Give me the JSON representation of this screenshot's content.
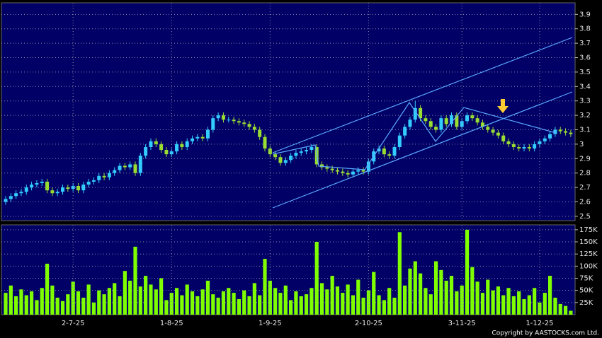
{
  "chart_data": [
    {
      "type": "candlestick",
      "up_color": "#33ccff",
      "down_color": "#99dd33",
      "grid": true,
      "ylim": [
        2.47,
        3.98
      ],
      "yticks": [
        2.5,
        2.6,
        2.7,
        2.8,
        2.9,
        3,
        3.1,
        3.2,
        3.3,
        3.4,
        3.5,
        3.6,
        3.7,
        3.8,
        3.9
      ],
      "open": [
        2.6,
        2.62,
        2.64,
        2.66,
        2.67,
        2.7,
        2.72,
        2.73,
        2.74,
        2.68,
        2.66,
        2.67,
        2.7,
        2.69,
        2.71,
        2.68,
        2.72,
        2.74,
        2.75,
        2.78,
        2.77,
        2.8,
        2.82,
        2.85,
        2.84,
        2.86,
        2.8,
        2.92,
        2.98,
        3.02,
        3.0,
        2.96,
        2.93,
        2.95,
        3.0,
        2.98,
        3.02,
        3.04,
        3.05,
        3.04,
        3.1,
        3.18,
        3.2,
        3.17,
        3.17,
        3.16,
        3.15,
        3.14,
        3.12,
        3.1,
        3.05,
        2.97,
        2.93,
        2.91,
        2.87,
        2.89,
        2.92,
        2.94,
        2.95,
        2.96,
        2.98,
        2.86,
        2.84,
        2.83,
        2.82,
        2.81,
        2.8,
        2.79,
        2.81,
        2.82,
        2.81,
        2.88,
        2.95,
        2.97,
        2.93,
        2.92,
        2.98,
        3.06,
        3.12,
        3.17,
        3.25,
        3.18,
        3.16,
        3.12,
        3.1,
        3.18,
        3.14,
        3.2,
        3.12,
        3.16,
        3.2,
        3.18,
        3.15,
        3.12,
        3.1,
        3.08,
        3.06,
        3.02,
        3.0,
        2.98,
        2.97,
        2.98,
        2.97,
        3.0,
        3.02,
        3.04,
        3.07,
        3.1,
        3.09,
        3.08
      ],
      "high": [
        2.64,
        2.66,
        2.68,
        2.69,
        2.72,
        2.74,
        2.75,
        2.76,
        2.76,
        2.7,
        2.69,
        2.72,
        2.72,
        2.73,
        2.73,
        2.74,
        2.76,
        2.77,
        2.8,
        2.8,
        2.82,
        2.84,
        2.87,
        2.87,
        2.88,
        2.88,
        2.94,
        3.0,
        3.04,
        3.04,
        3.02,
        2.98,
        2.97,
        3.02,
        3.02,
        3.04,
        3.06,
        3.07,
        3.07,
        3.12,
        3.2,
        3.22,
        3.22,
        3.19,
        3.19,
        3.18,
        3.17,
        3.16,
        3.14,
        3.12,
        3.07,
        2.99,
        2.95,
        2.93,
        2.91,
        2.94,
        2.96,
        2.97,
        2.98,
        3.0,
        3.0,
        2.88,
        2.86,
        2.85,
        2.84,
        2.83,
        2.82,
        2.83,
        2.84,
        2.84,
        2.9,
        2.97,
        2.99,
        2.99,
        2.95,
        3.0,
        3.08,
        3.14,
        3.19,
        3.3,
        3.27,
        3.2,
        3.18,
        3.14,
        3.2,
        3.2,
        3.22,
        3.22,
        3.18,
        3.22,
        3.22,
        3.2,
        3.17,
        3.14,
        3.12,
        3.1,
        3.08,
        3.04,
        3.02,
        3.0,
        3.0,
        3.0,
        3.02,
        3.04,
        3.06,
        3.09,
        3.12,
        3.12,
        3.11,
        3.1
      ],
      "low": [
        2.58,
        2.6,
        2.62,
        2.64,
        2.65,
        2.68,
        2.7,
        2.71,
        2.66,
        2.64,
        2.64,
        2.65,
        2.67,
        2.67,
        2.66,
        2.66,
        2.7,
        2.72,
        2.73,
        2.75,
        2.75,
        2.78,
        2.8,
        2.82,
        2.82,
        2.78,
        2.78,
        2.9,
        2.96,
        2.98,
        2.94,
        2.91,
        2.91,
        2.93,
        2.96,
        2.96,
        3.0,
        3.02,
        3.02,
        3.02,
        3.08,
        3.16,
        3.15,
        3.15,
        3.14,
        3.13,
        3.12,
        3.1,
        3.08,
        3.03,
        2.95,
        2.91,
        2.89,
        2.85,
        2.85,
        2.87,
        2.9,
        2.92,
        2.93,
        2.94,
        2.84,
        2.82,
        2.81,
        2.8,
        2.79,
        2.78,
        2.77,
        2.77,
        2.79,
        2.79,
        2.79,
        2.86,
        2.93,
        2.91,
        2.9,
        2.9,
        2.96,
        3.04,
        3.1,
        3.15,
        3.16,
        3.14,
        3.1,
        3.08,
        3.08,
        3.12,
        3.12,
        3.1,
        3.1,
        3.14,
        3.16,
        3.13,
        3.1,
        3.08,
        3.06,
        3.04,
        3.0,
        2.98,
        2.96,
        2.95,
        2.95,
        2.95,
        2.95,
        2.98,
        3.0,
        3.02,
        3.05,
        3.07,
        3.06,
        3.05
      ],
      "close": [
        2.62,
        2.64,
        2.66,
        2.67,
        2.7,
        2.72,
        2.73,
        2.74,
        2.68,
        2.66,
        2.67,
        2.7,
        2.69,
        2.71,
        2.68,
        2.72,
        2.74,
        2.75,
        2.78,
        2.77,
        2.8,
        2.82,
        2.85,
        2.84,
        2.86,
        2.8,
        2.92,
        2.98,
        3.02,
        3.0,
        2.96,
        2.93,
        2.95,
        3.0,
        2.98,
        3.02,
        3.04,
        3.05,
        3.04,
        3.1,
        3.18,
        3.2,
        3.17,
        3.17,
        3.16,
        3.15,
        3.14,
        3.12,
        3.1,
        3.05,
        2.97,
        2.93,
        2.91,
        2.87,
        2.89,
        2.92,
        2.94,
        2.95,
        2.96,
        2.98,
        2.86,
        2.84,
        2.83,
        2.82,
        2.81,
        2.8,
        2.79,
        2.81,
        2.82,
        2.81,
        2.88,
        2.95,
        2.97,
        2.93,
        2.92,
        2.98,
        3.06,
        3.12,
        3.17,
        3.25,
        3.18,
        3.16,
        3.12,
        3.1,
        3.18,
        3.14,
        3.2,
        3.12,
        3.16,
        3.2,
        3.18,
        3.15,
        3.12,
        3.1,
        3.08,
        3.06,
        3.02,
        3.0,
        2.98,
        2.97,
        2.98,
        2.97,
        3.0,
        3.02,
        3.04,
        3.07,
        3.1,
        3.09,
        3.08,
        3.07
      ]
    },
    {
      "type": "bar",
      "color": "#7fff00",
      "grid": true,
      "ylim": [
        0,
        185000
      ],
      "yticks": [
        {
          "value": 25000,
          "label": "25K"
        },
        {
          "value": 50000,
          "label": "50K"
        },
        {
          "value": 75000,
          "label": "75K"
        },
        {
          "value": 100000,
          "label": "100K"
        },
        {
          "value": 125000,
          "label": "125K"
        },
        {
          "value": 150000,
          "label": "150K"
        },
        {
          "value": 175000,
          "label": "175K"
        }
      ],
      "categories": [
        null,
        null,
        null,
        null,
        null,
        null,
        null,
        null,
        null,
        null,
        null,
        null,
        null,
        "2-7-25",
        null,
        null,
        null,
        null,
        null,
        null,
        null,
        null,
        null,
        null,
        null,
        null,
        null,
        null,
        null,
        null,
        null,
        null,
        "1-8-25",
        null,
        null,
        null,
        null,
        null,
        null,
        null,
        null,
        null,
        null,
        null,
        null,
        null,
        null,
        null,
        null,
        null,
        null,
        "1-9-25",
        null,
        null,
        null,
        null,
        null,
        null,
        null,
        null,
        null,
        null,
        null,
        null,
        null,
        null,
        null,
        null,
        null,
        null,
        "2-10-25",
        null,
        null,
        null,
        null,
        null,
        null,
        null,
        null,
        null,
        null,
        null,
        null,
        null,
        null,
        null,
        null,
        null,
        "3-11-25",
        null,
        null,
        null,
        null,
        null,
        null,
        null,
        null,
        null,
        null,
        null,
        null,
        null,
        null,
        "1-12-25",
        null,
        null,
        null,
        null,
        null,
        null
      ],
      "values": [
        45000,
        60000,
        38000,
        52000,
        40000,
        48000,
        30000,
        55000,
        105000,
        60000,
        35000,
        28000,
        42000,
        68000,
        48000,
        35000,
        62000,
        25000,
        50000,
        42000,
        55000,
        65000,
        38000,
        90000,
        70000,
        140000,
        58000,
        80000,
        62000,
        52000,
        75000,
        30000,
        45000,
        55000,
        40000,
        62000,
        48000,
        38000,
        52000,
        70000,
        42000,
        35000,
        48000,
        55000,
        45000,
        32000,
        50000,
        38000,
        65000,
        40000,
        115000,
        70000,
        55000,
        45000,
        60000,
        30000,
        48000,
        38000,
        42000,
        55000,
        150000,
        65000,
        52000,
        80000,
        58000,
        45000,
        62000,
        40000,
        72000,
        35000,
        50000,
        88000,
        40000,
        30000,
        55000,
        35000,
        170000,
        60000,
        95000,
        110000,
        85000,
        55000,
        42000,
        110000,
        92000,
        70000,
        80000,
        48000,
        60000,
        175000,
        98000,
        68000,
        45000,
        72000,
        50000,
        58000,
        40000,
        55000,
        38000,
        48000,
        32000,
        40000,
        55000,
        25000,
        45000,
        80000,
        35000,
        22000,
        18000,
        8000
      ],
      "source": "Copyright by AASTOCKS.com Ltd."
    }
  ]
}
